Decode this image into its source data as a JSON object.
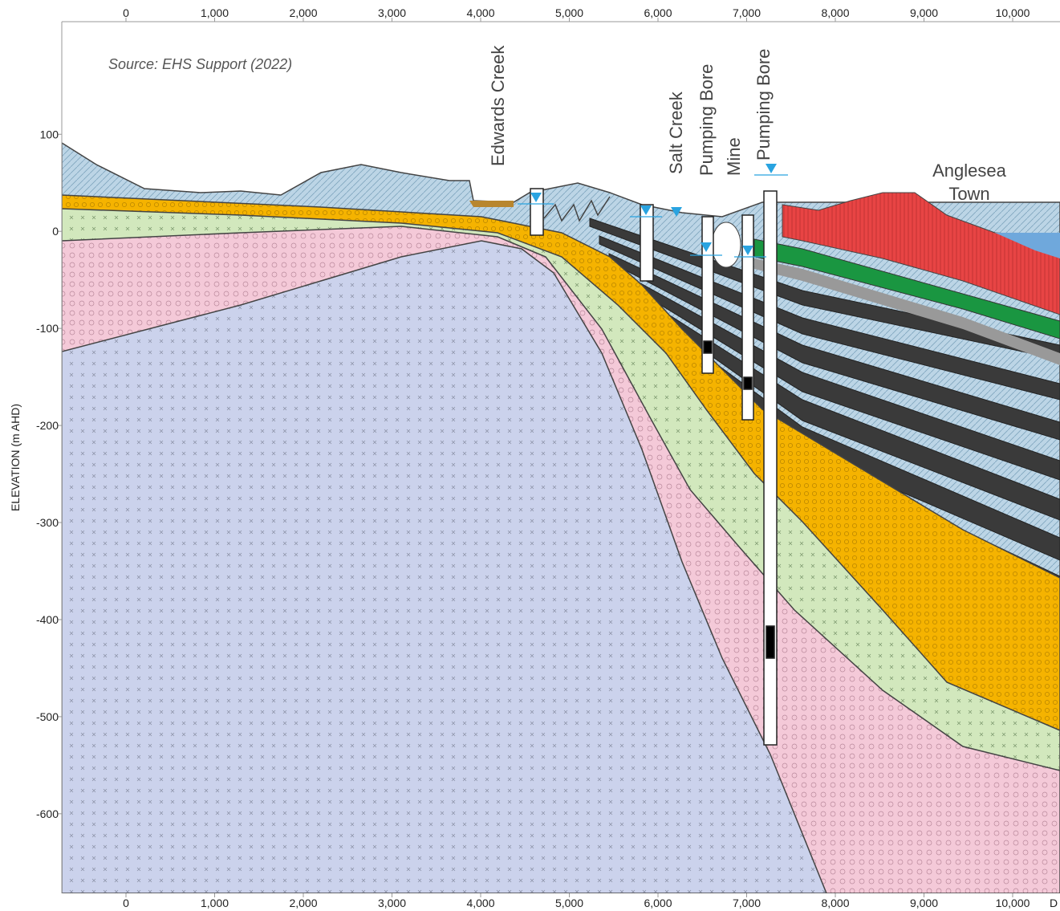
{
  "source": "Source: EHS Support (2022)",
  "axes": {
    "xlim": [
      -724,
      10534
    ],
    "ylim": [
      -682,
      216
    ],
    "xticks": [
      0,
      {
        "value": 1000,
        "label": "1,000"
      },
      {
        "value": 2000,
        "label": "2,000"
      },
      {
        "value": 3000,
        "label": "3,000"
      },
      {
        "value": 4000,
        "label": "4,000"
      },
      {
        "value": 5000,
        "label": "5,000"
      },
      {
        "value": 6000,
        "label": "6,000"
      },
      {
        "value": 7000,
        "label": "7,000"
      },
      {
        "value": 8000,
        "label": "8,000"
      },
      {
        "value": 9000,
        "label": "9,000"
      },
      {
        "value": 10000,
        "label": "10,000"
      }
    ],
    "yticks": [
      100,
      0,
      -100,
      -200,
      -300,
      -400,
      -500,
      -600
    ],
    "y_label": "ELEVATION (m AHD)",
    "x_label": "D"
  },
  "labels": {
    "edwards_creek": "Edwards Creek",
    "salt_creek": "Salt Creek",
    "pumping_bore_1": "Pumping Bore",
    "mine": "Mine",
    "pumping_bore_2": "Pumping Bore",
    "town": [
      "Anglesea",
      "Town"
    ]
  }
}
